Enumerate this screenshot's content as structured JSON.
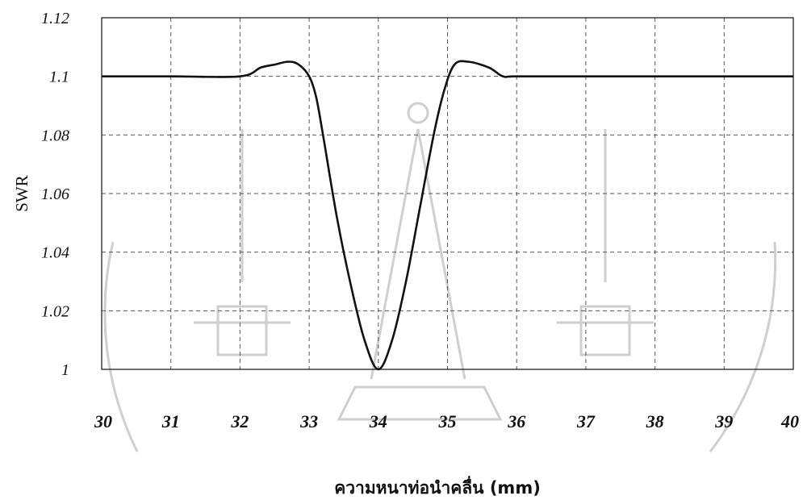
{
  "chart_data": {
    "type": "line",
    "title": "",
    "xlabel": "ความหนาท่อนำคลื่น (mm)",
    "ylabel": "SWR",
    "xlim": [
      30,
      40
    ],
    "ylim": [
      1,
      1.12
    ],
    "x_ticks": [
      "30",
      "31",
      "32",
      "33",
      "34",
      "35",
      "36",
      "37",
      "38",
      "39",
      "40"
    ],
    "y_ticks": [
      "1",
      "1.02",
      "1.04",
      "1.06",
      "1.08",
      "1.1",
      "1.12"
    ],
    "grid": true,
    "series": [
      {
        "x": [
          30,
          31,
          32,
          32.3,
          32.5,
          32.7,
          32.85,
          33,
          33.1,
          33.2,
          33.4,
          33.6,
          33.8,
          34,
          34.2,
          34.4,
          34.6,
          34.8,
          34.95,
          35.1,
          35.3,
          35.6,
          35.8,
          36,
          37,
          38,
          39,
          40
        ],
        "y": [
          1.1,
          1.1,
          1.1,
          1.103,
          1.104,
          1.105,
          1.104,
          1.1,
          1.093,
          1.08,
          1.052,
          1.029,
          1.01,
          1.0,
          1.01,
          1.03,
          1.055,
          1.08,
          1.095,
          1.104,
          1.105,
          1.103,
          1.1,
          1.1,
          1.1,
          1.1,
          1.1,
          1.1
        ]
      }
    ]
  },
  "watermark": {
    "icon": "university-emblem-watermark-icon"
  }
}
